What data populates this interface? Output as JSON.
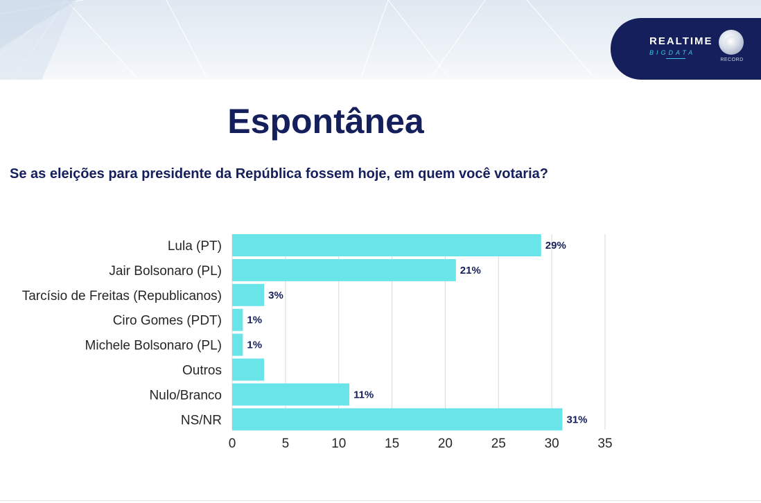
{
  "header": {
    "brand_line1": "REALTIME",
    "brand_line2": "BIGDATA",
    "partner": "RECORD"
  },
  "title": "Espontânea",
  "question": "Se as eleições para presidente da República fossem hoje, em quem você votaria?",
  "colors": {
    "bar": "#69e5ea",
    "title": "#141f5c",
    "label": "#141f5c",
    "logo_bg": "#141f5c"
  },
  "chart_data": {
    "type": "bar",
    "orientation": "horizontal",
    "title": "",
    "xlabel": "",
    "ylabel": "",
    "xlim": [
      0,
      35
    ],
    "x_ticks": [
      0,
      5,
      10,
      15,
      20,
      25,
      30,
      35
    ],
    "grid": true,
    "categories": [
      "Lula (PT)",
      "Jair Bolsonaro (PL)",
      "Tarcísio de Freitas (Republicanos)",
      "Ciro Gomes (PDT)",
      "Michele Bolsonaro (PL)",
      "Outros",
      "Nulo/Branco",
      "NS/NR"
    ],
    "values": [
      29,
      21,
      3,
      1,
      1,
      3,
      11,
      31
    ],
    "data_labels": [
      "29%",
      "21%",
      "3%",
      "1%",
      "1%",
      "",
      "11%",
      "31%"
    ]
  }
}
